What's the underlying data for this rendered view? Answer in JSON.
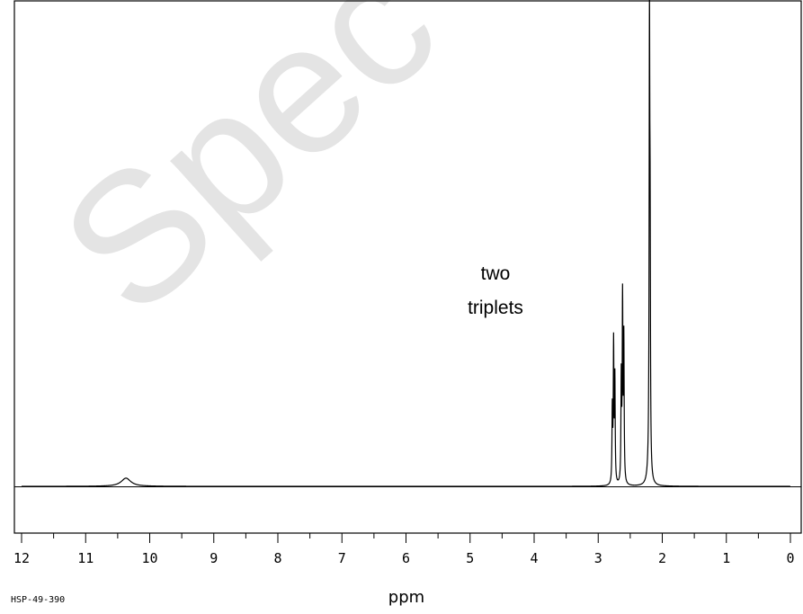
{
  "chart_data": {
    "type": "line",
    "xlabel": "ppm",
    "ylabel": "",
    "xlim": [
      12,
      0
    ],
    "x_reversed": true,
    "x_ticks": [
      12,
      11,
      10,
      9,
      8,
      7,
      6,
      5,
      4,
      3,
      2,
      1,
      0
    ],
    "y_range": [
      0,
      1
    ],
    "grid": false,
    "peaks": [
      {
        "ppm": 10.37,
        "height": 0.019,
        "width": 0.09
      },
      {
        "ppm": 2.76,
        "height": 0.32,
        "width": 0.006
      },
      {
        "ppm": 2.74,
        "height": 0.24,
        "width": 0.006
      },
      {
        "ppm": 2.78,
        "height": 0.17,
        "width": 0.006
      },
      {
        "ppm": 2.62,
        "height": 0.42,
        "width": 0.006
      },
      {
        "ppm": 2.6,
        "height": 0.33,
        "width": 0.006
      },
      {
        "ppm": 2.64,
        "height": 0.24,
        "width": 0.006
      },
      {
        "ppm": 2.2,
        "height": 1.0,
        "width": 0.006
      },
      {
        "ppm": 2.19,
        "height": 0.47,
        "width": 0.006
      },
      {
        "ppm": 2.21,
        "height": 0.028,
        "width": 0.03
      }
    ],
    "annotations": [
      {
        "text_line1": "two",
        "text_line2": "triplets"
      }
    ]
  },
  "spectrum_id": "HSP-49-390",
  "watermark": "Spec",
  "colors": {
    "trace": "#000000",
    "watermark": "#cfcfcf",
    "background": "#ffffff"
  }
}
